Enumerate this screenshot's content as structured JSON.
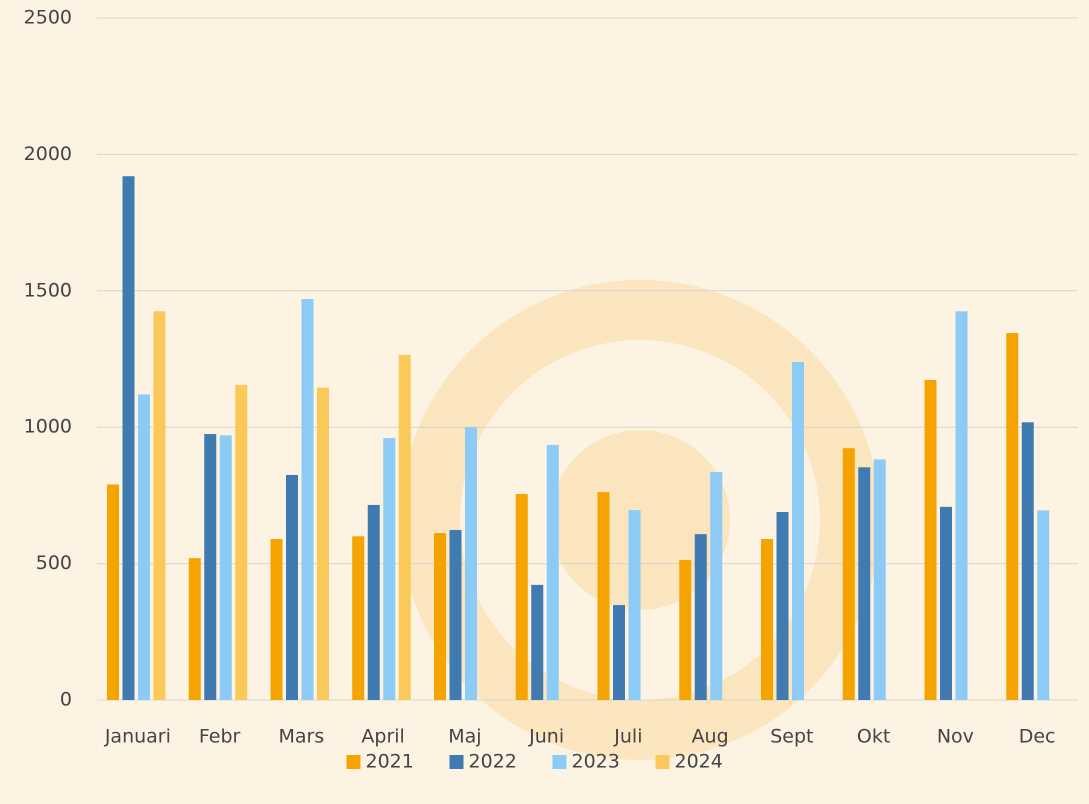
{
  "chart_data": {
    "type": "bar",
    "categories": [
      "Januari",
      "Febr",
      "Mars",
      "April",
      "Maj",
      "Juni",
      "Juli",
      "Aug",
      "Sept",
      "Okt",
      "Nov",
      "Dec"
    ],
    "series": [
      {
        "name": "2021",
        "color": "#f5a300",
        "values": [
          790,
          520,
          590,
          600,
          612,
          755,
          762,
          513,
          590,
          923,
          1173,
          1345
        ]
      },
      {
        "name": "2022",
        "color": "#3f7ab0",
        "values": [
          1920,
          975,
          825,
          715,
          623,
          422,
          348,
          608,
          689,
          853,
          708,
          1018
        ]
      },
      {
        "name": "2023",
        "color": "#8ccbf6",
        "values": [
          1120,
          970,
          1470,
          960,
          1000,
          935,
          696,
          836,
          1239,
          882,
          1425,
          695
        ]
      },
      {
        "name": "2024",
        "color": "#fbc85a",
        "values": [
          1425,
          1155,
          1145,
          1265,
          null,
          null,
          null,
          null,
          null,
          null,
          null,
          null
        ]
      }
    ],
    "ylim": [
      0,
      2500
    ],
    "yticks": [
      0,
      500,
      1000,
      1500,
      2000,
      2500
    ],
    "grid": true,
    "legend": "bottom"
  }
}
